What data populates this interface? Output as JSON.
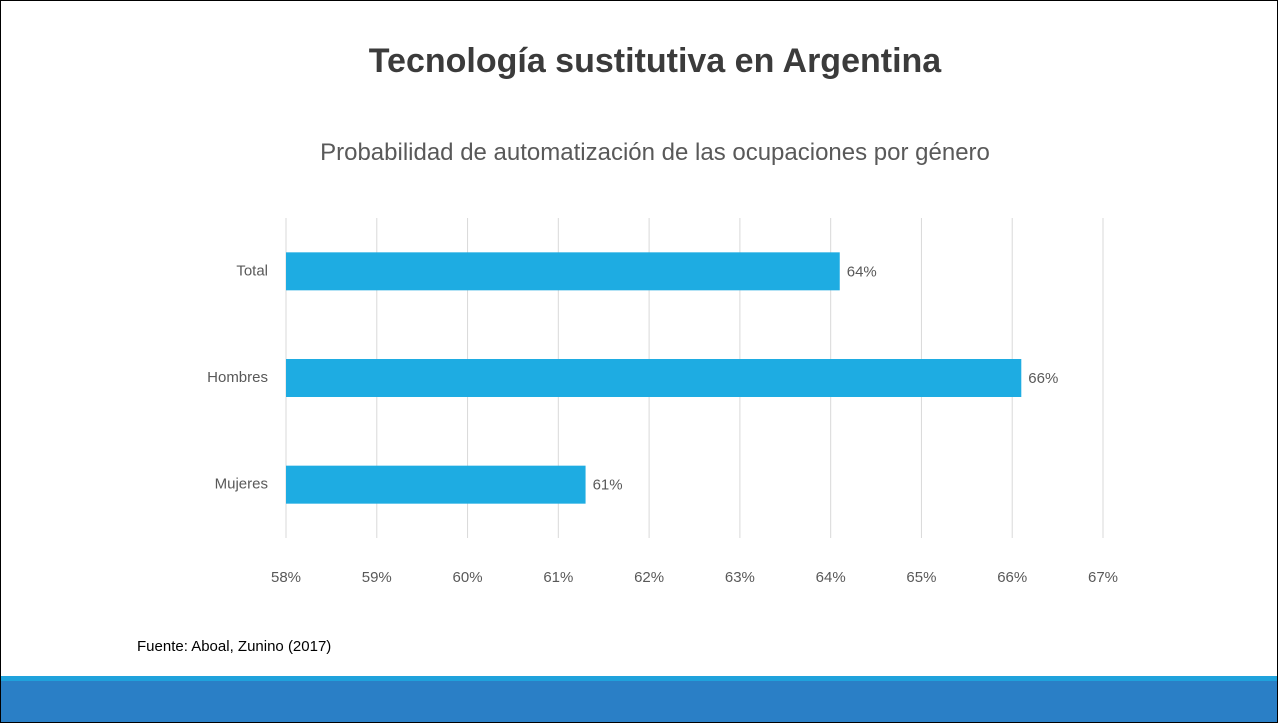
{
  "slide": {
    "title": "Tecnología sustitutiva en Argentina",
    "source": "Fuente: Aboal, Zunino (2017)"
  },
  "chart_data": {
    "type": "hbar",
    "title": "Probabilidad de automatización de las ocupaciones por género",
    "categories": [
      "Total",
      "Hombres",
      "Mujeres"
    ],
    "values": [
      64.1,
      66.1,
      61.3
    ],
    "value_labels": [
      "64%",
      "66%",
      "61%"
    ],
    "color": "#1eace2",
    "xlim": [
      58,
      67
    ],
    "xticks": [
      {
        "value": 58,
        "label": "58%"
      },
      {
        "value": 59,
        "label": "59%"
      },
      {
        "value": 60,
        "label": "60%"
      },
      {
        "value": 61,
        "label": "61%"
      },
      {
        "value": 62,
        "label": "62%"
      },
      {
        "value": 63,
        "label": "63%"
      },
      {
        "value": 64,
        "label": "64%"
      },
      {
        "value": 65,
        "label": "65%"
      },
      {
        "value": 66,
        "label": "66%"
      },
      {
        "value": 67,
        "label": "67%"
      }
    ],
    "grid": true
  }
}
